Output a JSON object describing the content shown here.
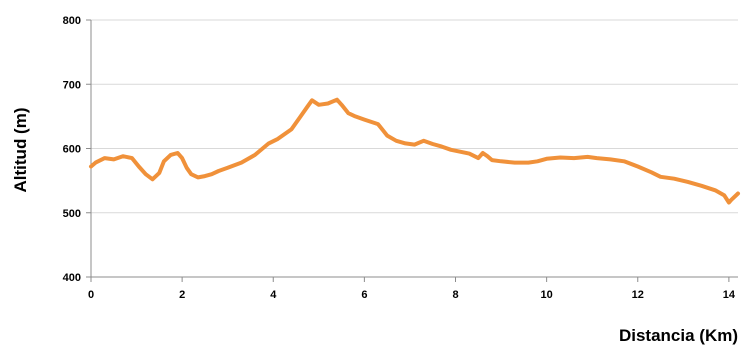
{
  "chart_data": {
    "type": "line",
    "xlabel": "Distancia (Km)",
    "ylabel": "Altitud  (m)",
    "xlim": [
      0,
      14.2
    ],
    "ylim": [
      400,
      800
    ],
    "x_ticks": [
      0,
      2,
      4,
      6,
      8,
      10,
      12,
      14
    ],
    "y_ticks": [
      400,
      500,
      600,
      700,
      800
    ],
    "grid": "horizontal",
    "line_color": "#f0913a",
    "series": [
      {
        "x": [
          0,
          0.1,
          0.3,
          0.5,
          0.7,
          0.9,
          1.05,
          1.2,
          1.35,
          1.5,
          1.6,
          1.75,
          1.9,
          2.0,
          2.1,
          2.2,
          2.35,
          2.5,
          2.65,
          2.8,
          3.0,
          3.3,
          3.6,
          3.9,
          4.1,
          4.4,
          4.6,
          4.75,
          4.85,
          5.0,
          5.2,
          5.4,
          5.5,
          5.65,
          5.8,
          6.0,
          6.3,
          6.5,
          6.7,
          6.9,
          7.1,
          7.3,
          7.5,
          7.7,
          7.9,
          8.1,
          8.3,
          8.5,
          8.6,
          8.7,
          8.8,
          9.0,
          9.3,
          9.6,
          9.8,
          10.0,
          10.3,
          10.6,
          10.9,
          11.1,
          11.4,
          11.7,
          12.0,
          12.3,
          12.5,
          12.8,
          13.1,
          13.4,
          13.7,
          13.9,
          14.0,
          14.05,
          14.2
        ],
        "y": [
          572,
          578,
          585,
          583,
          588,
          585,
          572,
          560,
          552,
          562,
          580,
          590,
          593,
          585,
          570,
          560,
          555,
          557,
          560,
          565,
          570,
          578,
          590,
          608,
          615,
          630,
          650,
          665,
          675,
          668,
          670,
          676,
          668,
          655,
          650,
          645,
          638,
          620,
          612,
          608,
          606,
          612,
          607,
          603,
          598,
          595,
          592,
          585,
          593,
          588,
          582,
          580,
          578,
          578,
          580,
          584,
          586,
          585,
          587,
          585,
          583,
          580,
          572,
          563,
          556,
          553,
          548,
          542,
          535,
          527,
          516,
          520,
          530
        ]
      }
    ]
  }
}
